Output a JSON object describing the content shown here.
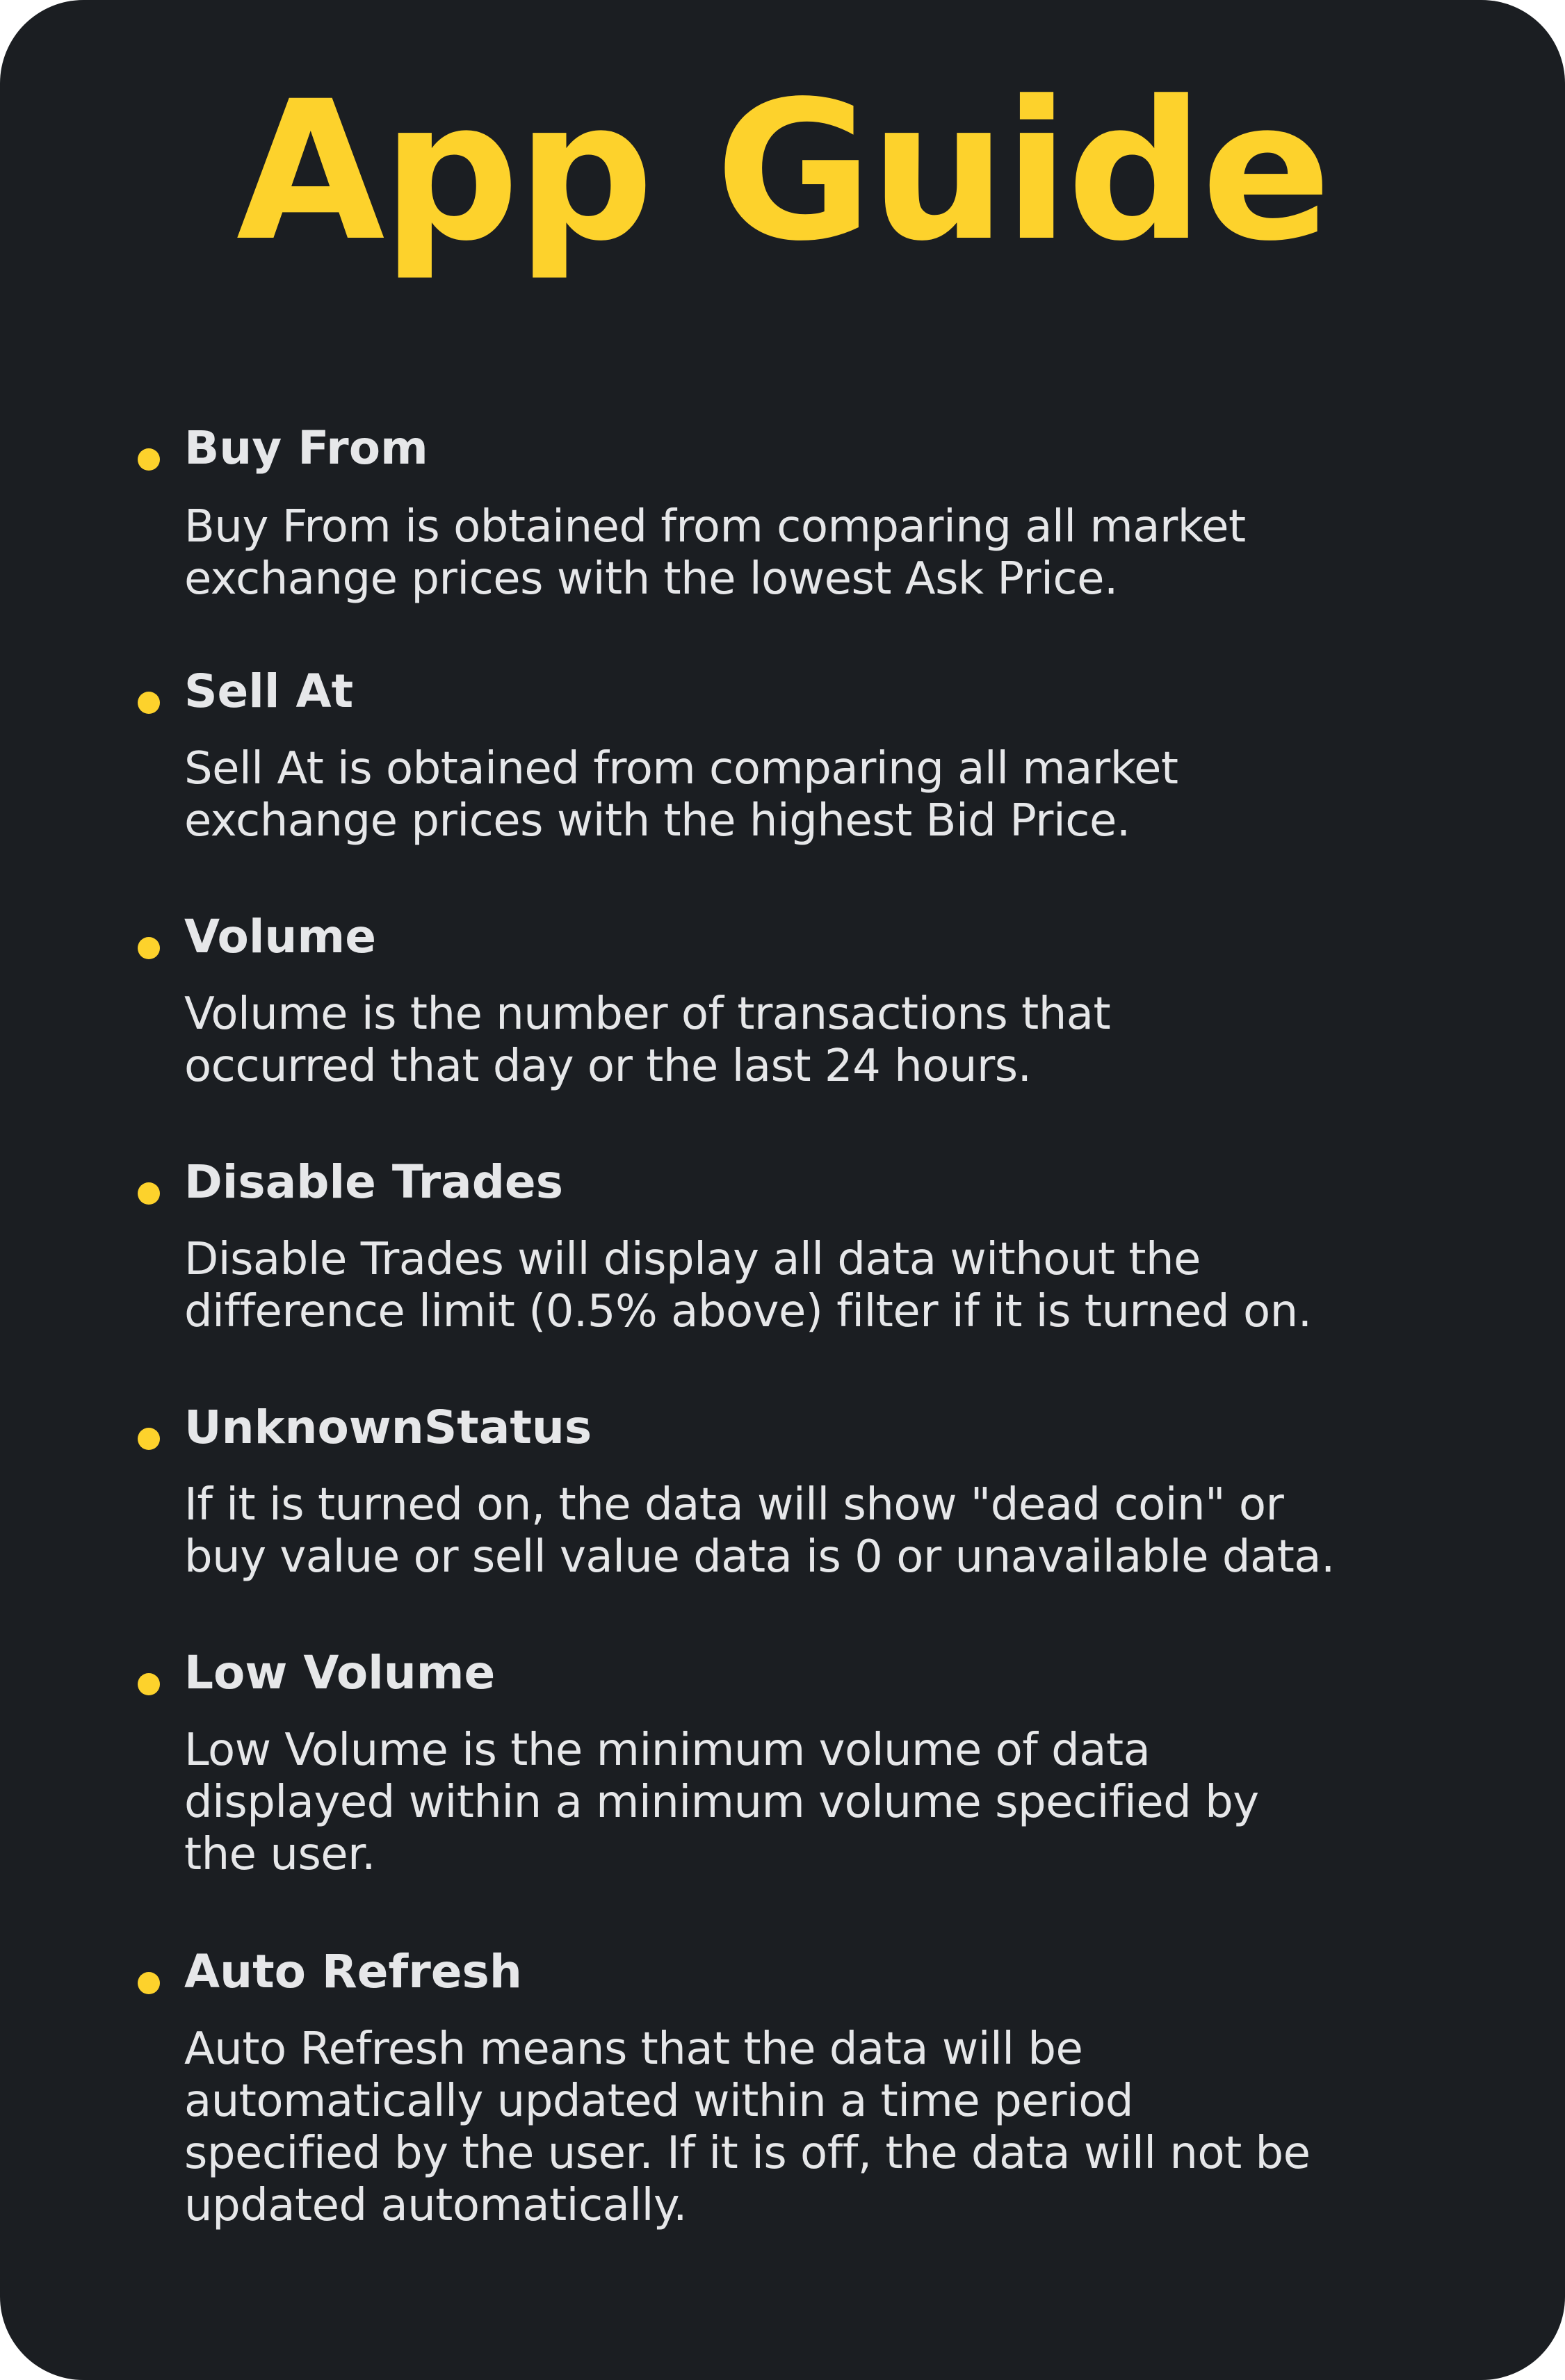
{
  "title": "App Guide",
  "colors": {
    "background": "#1b1e22",
    "accent": "#fdd22c",
    "text": "#e6e7e9"
  },
  "items": [
    {
      "heading": "Buy From",
      "lines": [
        "Buy From is obtained from comparing all market",
        "exchange prices with the lowest Ask Price."
      ]
    },
    {
      "heading": "Sell At",
      "lines": [
        "Sell At is obtained from comparing all market",
        "exchange prices with the highest Bid Price."
      ]
    },
    {
      "heading": "Volume",
      "lines": [
        "Volume is the number of transactions that",
        "occurred that day or the last 24 hours."
      ]
    },
    {
      "heading": "Disable Trades",
      "lines": [
        "Disable Trades will display all data without the",
        "difference limit (0.5% above) filter if it is turned on."
      ]
    },
    {
      "heading": "UnknownStatus",
      "lines": [
        "If it is turned on, the data will show \"dead coin\" or",
        "buy value or sell value data is 0 or unavailable data."
      ]
    },
    {
      "heading": "Low Volume",
      "lines": [
        "Low Volume is the minimum volume of data",
        "displayed within a minimum volume specified by",
        "the user."
      ]
    },
    {
      "heading": "Auto Refresh",
      "lines": [
        "Auto Refresh means that the data will be",
        "automatically updated within a time period",
        "specified by the user. If it is off, the data will not be",
        "updated automatically."
      ]
    }
  ]
}
